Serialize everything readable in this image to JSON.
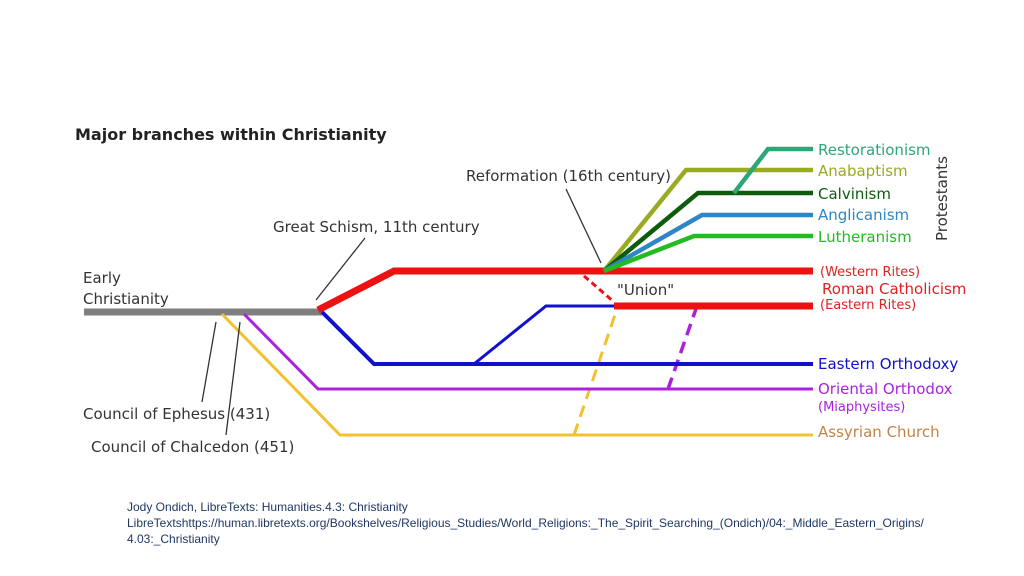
{
  "diagram": {
    "title": "Major branches within Christianity",
    "labels": {
      "early_line1": "Early",
      "early_line2": "Christianity",
      "great_schism": "Great Schism, 11th century",
      "reformation": "Reformation (16th century)",
      "union": "\"Union\"",
      "ephesus": "Council of Ephesus (431)",
      "chalcedon": "Council of Chalcedon (451)",
      "protestants": "Protestants"
    },
    "branches": {
      "restorationism": "Restorationism",
      "anabaptism": "Anabaptism",
      "calvinism": "Calvinism",
      "anglicanism": "Anglicanism",
      "lutheranism": "Lutheranism",
      "western_rites": "(Western Rites)",
      "roman_catholicism": "Roman Catholicism",
      "eastern_rites": "(Eastern Rites)",
      "eastern_orthodoxy": "Eastern Orthodoxy",
      "oriental_orthodox": "Oriental Orthodox",
      "miaphysites": "(Miaphysites)",
      "assyrian_church": "Assyrian Church"
    },
    "colors": {
      "early": "#7f7f7f",
      "catholic": "#ee1111",
      "orthodox": "#1111cc",
      "oriental": "#aa22dd",
      "assyrian": "#f2c12e",
      "restorationism": "#2ea676",
      "anabaptism": "#9aaa22",
      "calvinism": "#0c5c0c",
      "anglicanism": "#2f86c6",
      "lutheranism": "#22bb22",
      "catholic_text": "#dd2222",
      "assyrian_text": "#c0844a"
    }
  },
  "caption": {
    "line1": "Jody Ondich, LibreTexts: Humanities.4.3: Christianity",
    "line2": "LibreTextshttps://human.libretexts.org/Bookshelves/Religious_Studies/World_Religions:_The_Spirit_Searching_(Ondich)/04:_Middle_Eastern_Origins/4.03:_Christianity"
  }
}
